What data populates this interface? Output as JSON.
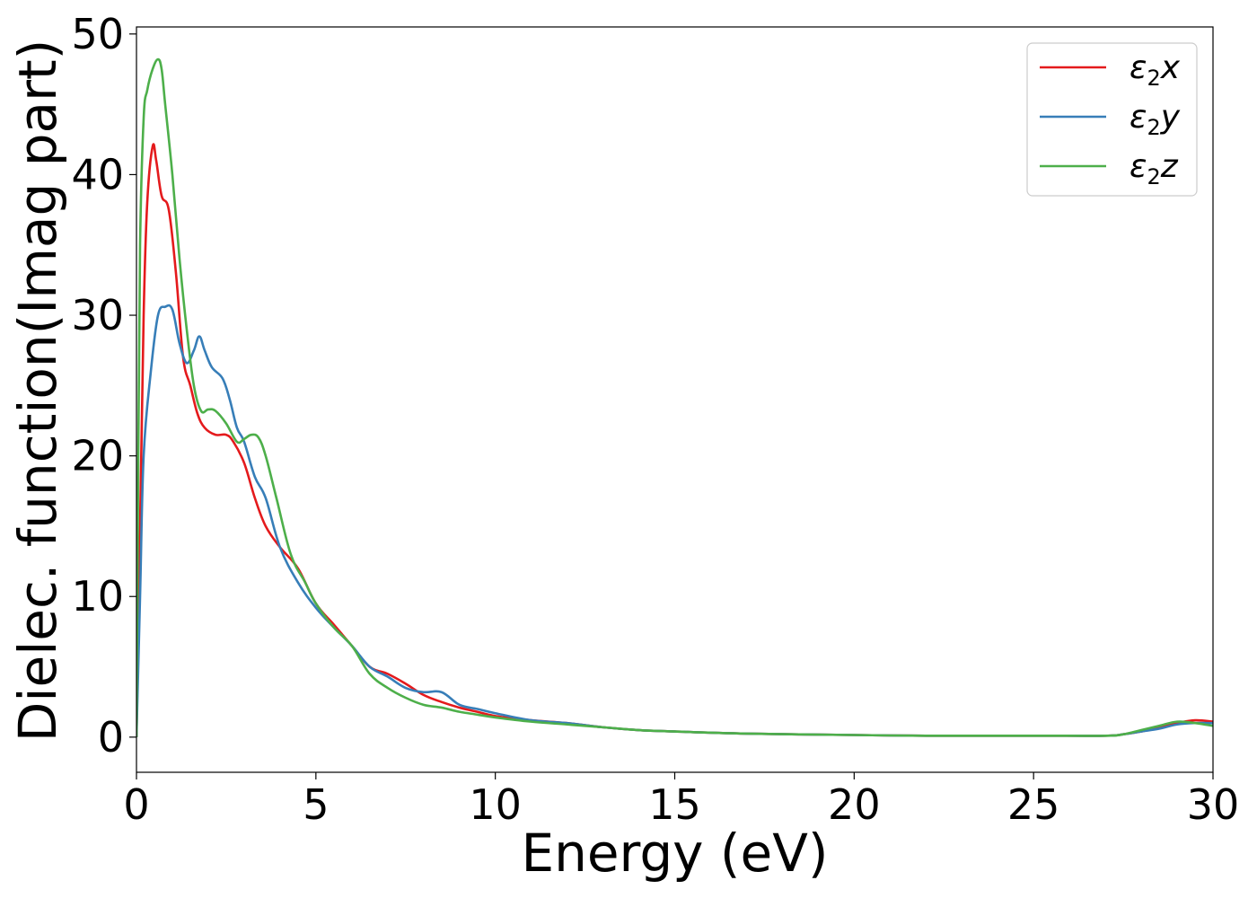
{
  "chart_data": {
    "type": "line",
    "title": "",
    "xlabel": "Energy (eV)",
    "ylabel": "Dielec. function(Imag part)",
    "xlim": [
      0,
      30
    ],
    "ylim": [
      -2.5,
      50.5
    ],
    "xticks": [
      0,
      5,
      10,
      15,
      20,
      25,
      30
    ],
    "xtick_labels": [
      "0",
      "5",
      "10",
      "15",
      "20",
      "25",
      "30"
    ],
    "yticks": [
      0,
      10,
      20,
      30,
      40,
      50
    ],
    "ytick_labels": [
      "0",
      "10",
      "20",
      "30",
      "40",
      "50"
    ],
    "grid": false,
    "legend_position": "top-right",
    "series": [
      {
        "name": "ε₂x",
        "legend_main": "ε",
        "legend_sub": "2",
        "legend_suffix": "x",
        "color": "#e41a1c",
        "x": [
          0,
          0.1,
          0.2,
          0.3,
          0.45,
          0.55,
          0.7,
          0.9,
          1.1,
          1.3,
          1.5,
          1.7,
          1.9,
          2.2,
          2.5,
          2.7,
          3.0,
          3.3,
          3.6,
          4.0,
          4.5,
          5.0,
          5.5,
          6.0,
          6.5,
          7.0,
          7.5,
          8.0,
          8.5,
          9.0,
          9.5,
          10.0,
          11.0,
          12.0,
          13.0,
          14.0,
          15.0,
          17.0,
          20.0,
          22.0,
          25.0,
          27.0,
          27.5,
          28.0,
          28.5,
          29.0,
          29.5,
          30.0
        ],
        "y": [
          0,
          15,
          30,
          38,
          42,
          41,
          38.5,
          37.5,
          33,
          27,
          25,
          23,
          22,
          21.5,
          21.5,
          21,
          19.5,
          17,
          15,
          13.5,
          12,
          9.5,
          8,
          6.5,
          5,
          4.5,
          3.8,
          3,
          2.5,
          2.1,
          1.8,
          1.5,
          1.2,
          1.0,
          0.7,
          0.5,
          0.4,
          0.25,
          0.15,
          0.1,
          0.1,
          0.1,
          0.2,
          0.4,
          0.7,
          1.0,
          1.2,
          1.1
        ]
      },
      {
        "name": "ε₂y",
        "legend_main": "ε",
        "legend_sub": "2",
        "legend_suffix": "y",
        "color": "#377eb8",
        "x": [
          0,
          0.1,
          0.2,
          0.4,
          0.6,
          0.8,
          1.0,
          1.2,
          1.4,
          1.6,
          1.75,
          1.9,
          2.1,
          2.4,
          2.6,
          2.8,
          3.0,
          3.3,
          3.6,
          4.0,
          4.5,
          5.0,
          5.5,
          6.0,
          6.5,
          7.0,
          7.5,
          8.0,
          8.5,
          9.0,
          9.5,
          10.0,
          11.0,
          12.0,
          13.0,
          14.0,
          15.0,
          17.0,
          20.0,
          22.0,
          25.0,
          27.0,
          27.5,
          28.0,
          28.5,
          29.0,
          29.5,
          30.0
        ],
        "y": [
          0,
          10,
          20,
          26,
          30,
          30.6,
          30.4,
          28,
          26.6,
          27.5,
          28.5,
          27.5,
          26.3,
          25.5,
          24,
          22,
          21,
          18.5,
          17,
          13.5,
          11,
          9.2,
          7.8,
          6.5,
          5,
          4.3,
          3.5,
          3.2,
          3.2,
          2.3,
          2.0,
          1.7,
          1.2,
          1.0,
          0.7,
          0.5,
          0.4,
          0.25,
          0.15,
          0.1,
          0.1,
          0.1,
          0.2,
          0.4,
          0.6,
          0.9,
          1.0,
          1.0
        ]
      },
      {
        "name": "ε₂z",
        "legend_main": "ε",
        "legend_sub": "2",
        "legend_suffix": "z",
        "color": "#4daf4a",
        "x": [
          0,
          0.05,
          0.1,
          0.2,
          0.3,
          0.45,
          0.6,
          0.7,
          0.8,
          1.0,
          1.2,
          1.4,
          1.6,
          1.8,
          2.0,
          2.2,
          2.5,
          2.8,
          3.0,
          3.2,
          3.4,
          3.6,
          3.9,
          4.3,
          4.7,
          5.0,
          5.5,
          6.0,
          6.5,
          7.0,
          7.5,
          8.0,
          8.5,
          9.0,
          9.5,
          10.0,
          11.0,
          12.0,
          13.0,
          14.0,
          15.0,
          17.0,
          20.0,
          22.0,
          25.0,
          27.0,
          27.5,
          28.0,
          28.5,
          29.0,
          29.5,
          30.0
        ],
        "y": [
          0,
          20,
          35,
          44,
          46,
          47.5,
          48.2,
          47.5,
          45,
          40,
          34,
          29,
          25,
          23.2,
          23.3,
          23.2,
          22.3,
          21,
          21.2,
          21.5,
          21.3,
          20,
          17,
          13,
          11,
          9.5,
          7.8,
          6.5,
          4.5,
          3.5,
          2.8,
          2.3,
          2.1,
          1.8,
          1.6,
          1.4,
          1.1,
          0.9,
          0.7,
          0.5,
          0.4,
          0.25,
          0.15,
          0.1,
          0.1,
          0.1,
          0.2,
          0.5,
          0.8,
          1.1,
          1.0,
          0.8
        ]
      }
    ]
  }
}
